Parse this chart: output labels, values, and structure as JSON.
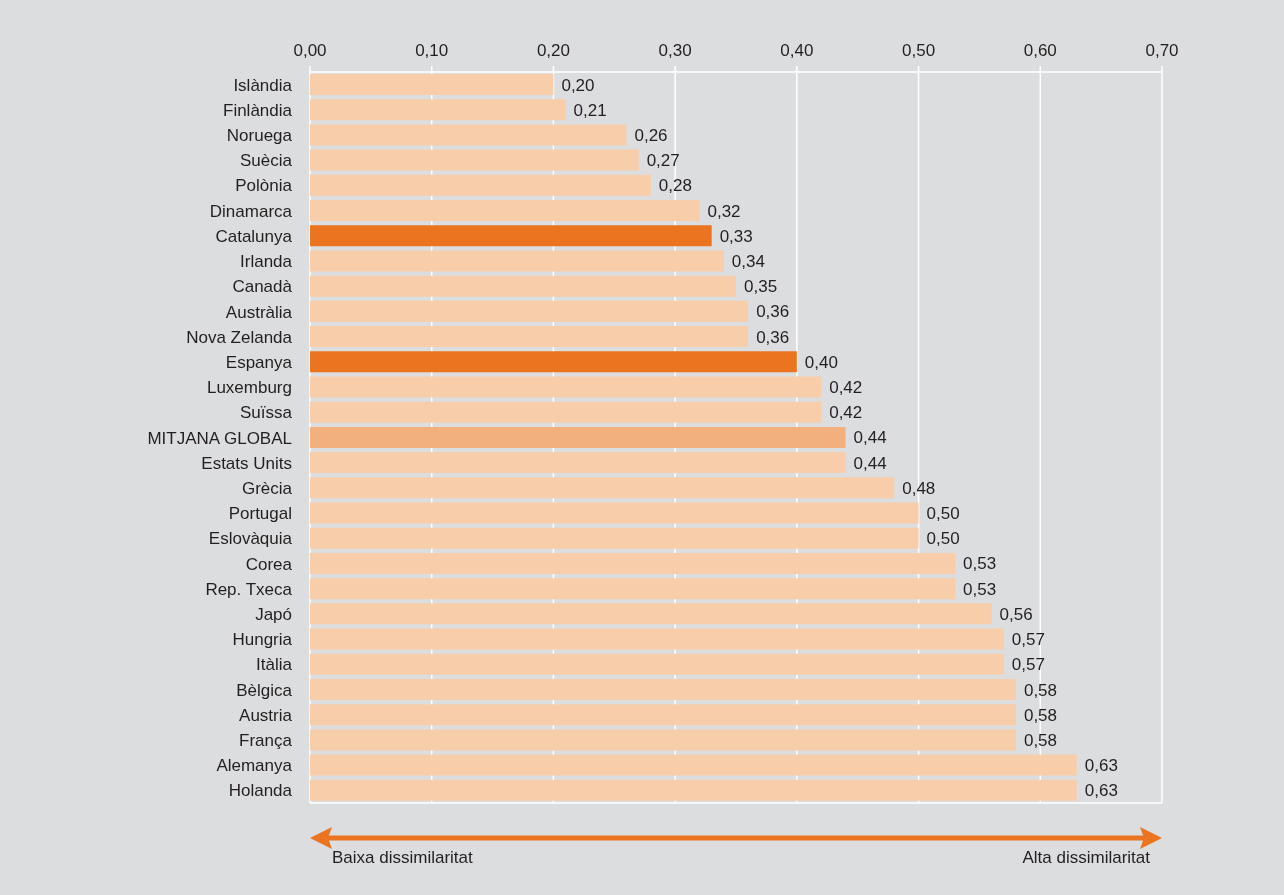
{
  "chart_data": {
    "type": "bar",
    "orientation": "horizontal",
    "categories": [
      "Islàndia",
      "Finlàndia",
      "Noruega",
      "Suècia",
      "Polònia",
      "Dinamarca",
      "Catalunya",
      "Irlanda",
      "Canadà",
      "Austràlia",
      "Nova Zelanda",
      "Espanya",
      "Luxemburg",
      "Suïssa",
      "MITJANA GLOBAL",
      "Estats Units",
      "Grècia",
      "Portugal",
      "Eslovàquia",
      "Corea",
      "Rep. Txeca",
      "Japó",
      "Hungria",
      "Itàlia",
      "Bèlgica",
      "Austria",
      "França",
      "Alemanya",
      "Holanda"
    ],
    "values": [
      0.2,
      0.21,
      0.26,
      0.27,
      0.28,
      0.32,
      0.33,
      0.34,
      0.35,
      0.36,
      0.36,
      0.4,
      0.42,
      0.42,
      0.44,
      0.44,
      0.48,
      0.5,
      0.5,
      0.53,
      0.53,
      0.56,
      0.57,
      0.57,
      0.58,
      0.58,
      0.58,
      0.63,
      0.63
    ],
    "colors": [
      "#f8cdaa",
      "#f8cdaa",
      "#f8cdaa",
      "#f8cdaa",
      "#f8cdaa",
      "#f8cdaa",
      "#eb7421",
      "#f8cdaa",
      "#f8cdaa",
      "#f8cdaa",
      "#f8cdaa",
      "#eb7421",
      "#f8cdaa",
      "#f8cdaa",
      "#f2b07f",
      "#f8cdaa",
      "#f8cdaa",
      "#f8cdaa",
      "#f8cdaa",
      "#f8cdaa",
      "#f8cdaa",
      "#f8cdaa",
      "#f8cdaa",
      "#f8cdaa",
      "#f8cdaa",
      "#f8cdaa",
      "#f8cdaa",
      "#f8cdaa",
      "#f8cdaa"
    ],
    "value_labels": [
      "0,20",
      "0,21",
      "0,26",
      "0,27",
      "0,28",
      "0,32",
      "0,33",
      "0,34",
      "0,35",
      "0,36",
      "0,36",
      "0,40",
      "0,42",
      "0,42",
      "0,44",
      "0,44",
      "0,48",
      "0,50",
      "0,50",
      "0,53",
      "0,53",
      "0,56",
      "0,57",
      "0,57",
      "0,58",
      "0,58",
      "0,58",
      "0,63",
      "0,63"
    ],
    "xlim": [
      0,
      0.7
    ],
    "xticks": [
      {
        "value": 0,
        "label": "0,00"
      },
      {
        "value": 0.1,
        "label": "0,10"
      },
      {
        "value": 0.2,
        "label": "0,20"
      },
      {
        "value": 0.3,
        "label": "0,30"
      },
      {
        "value": 0.4,
        "label": "0,40"
      },
      {
        "value": 0.5,
        "label": "0,50"
      },
      {
        "value": 0.6,
        "label": "0,60"
      },
      {
        "value": 0.7,
        "label": "0,70"
      }
    ],
    "grid": "x",
    "annotations": [
      "Baixa dissimilaritat",
      "Alta dissimilaritat"
    ]
  }
}
